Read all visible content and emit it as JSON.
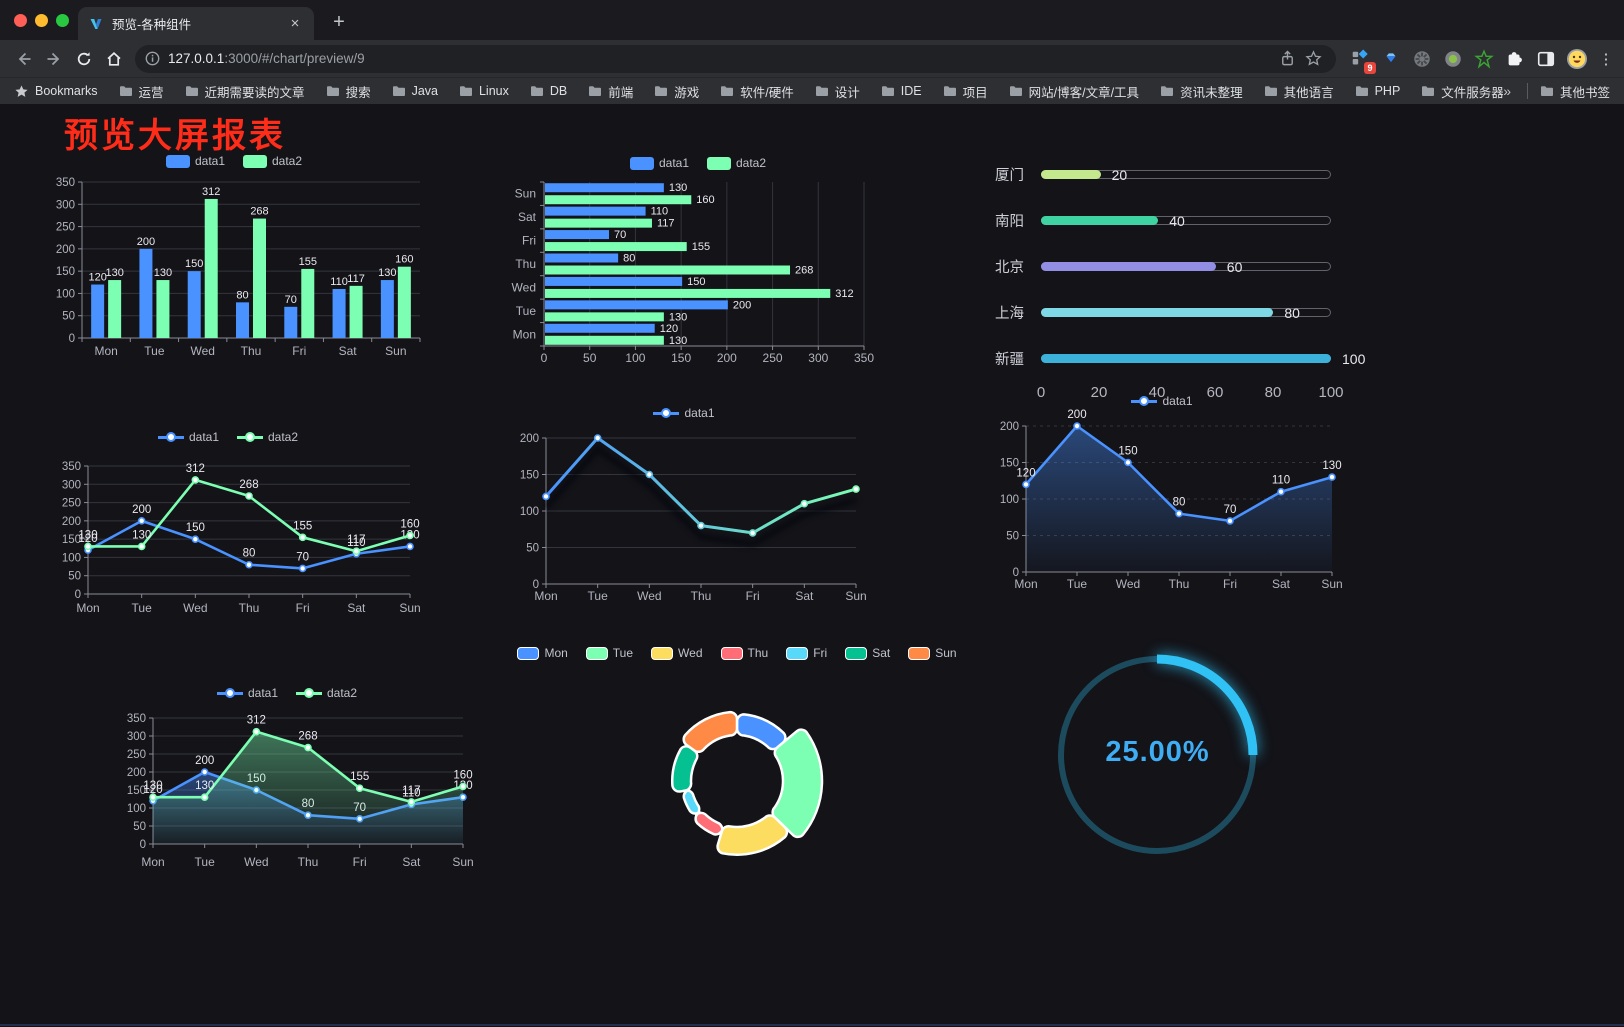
{
  "browser": {
    "tab": {
      "title": "预览-各种组件",
      "close_icon": "×",
      "new_tab_icon": "+"
    },
    "url": {
      "host": "127.0.0.1",
      "rest": ":3000/#/chart/preview/9"
    },
    "bookmarks_label": "Bookmarks",
    "bookmarks": [
      "运营",
      "近期需要读的文章",
      "搜索",
      "Java",
      "Linux",
      "DB",
      "前端",
      "游戏",
      "软件/硬件",
      "设计",
      "IDE",
      "项目",
      "网站/博客/文章/工具",
      "资讯未整理",
      "其他语言",
      "PHP",
      "文件服务器"
    ],
    "bookmarks_overflow": "»",
    "other_bookmarks": "其他书签",
    "extension_badge": "9",
    "menu_icon": "⋮"
  },
  "page": {
    "title": "预览大屏报表",
    "title_color": "#fe2c19"
  },
  "chart_data": [
    {
      "type": "bar",
      "orientation": "vertical",
      "categories": [
        "Mon",
        "Tue",
        "Wed",
        "Thu",
        "Fri",
        "Sat",
        "Sun"
      ],
      "series": [
        {
          "name": "data1",
          "color": "#4992ff",
          "values": [
            120,
            200,
            150,
            80,
            70,
            110,
            130
          ]
        },
        {
          "name": "data2",
          "color": "#7cffb2",
          "values": [
            130,
            130,
            312,
            268,
            155,
            117,
            160
          ]
        }
      ],
      "ylim": [
        0,
        350
      ],
      "ystep": 50,
      "grid": true,
      "legend_position": "top",
      "show_labels": true
    },
    {
      "type": "bar",
      "orientation": "horizontal",
      "categories": [
        "Mon",
        "Tue",
        "Wed",
        "Thu",
        "Fri",
        "Sat",
        "Sun"
      ],
      "series": [
        {
          "name": "data1",
          "color": "#4992ff",
          "values": [
            120,
            200,
            150,
            80,
            70,
            110,
            130
          ]
        },
        {
          "name": "data2",
          "color": "#7cffb2",
          "values": [
            130,
            130,
            312,
            268,
            155,
            117,
            160
          ]
        }
      ],
      "xlim": [
        0,
        350
      ],
      "xstep": 50,
      "grid": true,
      "legend_position": "top",
      "show_labels": true
    },
    {
      "type": "progress",
      "max": 100,
      "axis_ticks": [
        0,
        20,
        40,
        60,
        80,
        100
      ],
      "rows": [
        {
          "label": "厦门",
          "value": 20,
          "color": "#c3e88d"
        },
        {
          "label": "南阳",
          "value": 40,
          "color": "#3fd3a2"
        },
        {
          "label": "北京",
          "value": 60,
          "color": "#918ee3"
        },
        {
          "label": "上海",
          "value": 80,
          "color": "#7fd8e5"
        },
        {
          "label": "新疆",
          "value": 100,
          "color": "#3cb1da"
        }
      ]
    },
    {
      "type": "line",
      "categories": [
        "Mon",
        "Tue",
        "Wed",
        "Thu",
        "Fri",
        "Sat",
        "Sun"
      ],
      "series": [
        {
          "name": "data1",
          "color": "#4992ff",
          "values": [
            120,
            200,
            150,
            80,
            70,
            110,
            130
          ]
        },
        {
          "name": "data2",
          "color": "#7cffb2",
          "values": [
            130,
            130,
            312,
            268,
            155,
            117,
            160
          ]
        }
      ],
      "ylim": [
        0,
        350
      ],
      "ystep": 50,
      "show_labels": true
    },
    {
      "type": "line",
      "variant": "gradient",
      "categories": [
        "Mon",
        "Tue",
        "Wed",
        "Thu",
        "Fri",
        "Sat",
        "Sun"
      ],
      "series": [
        {
          "name": "data1",
          "color": "#4992ff",
          "color2": "#7cffb2",
          "values": [
            120,
            200,
            150,
            80,
            70,
            110,
            130
          ]
        }
      ],
      "ylim": [
        0,
        200
      ],
      "ystep": 50,
      "show_labels": false,
      "shadow": true
    },
    {
      "type": "line",
      "variant": "area",
      "categories": [
        "Mon",
        "Tue",
        "Wed",
        "Thu",
        "Fri",
        "Sat",
        "Sun"
      ],
      "series": [
        {
          "name": "data1",
          "color": "#4992ff",
          "values": [
            120,
            200,
            150,
            80,
            70,
            110,
            130
          ],
          "area": true
        }
      ],
      "ylim": [
        0,
        200
      ],
      "ystep": 50,
      "show_labels": true,
      "dashed_grid": true
    },
    {
      "type": "line",
      "variant": "area",
      "categories": [
        "Mon",
        "Tue",
        "Wed",
        "Thu",
        "Fri",
        "Sat",
        "Sun"
      ],
      "series": [
        {
          "name": "data1",
          "color": "#4992ff",
          "values": [
            120,
            200,
            150,
            80,
            70,
            110,
            130
          ],
          "area": true
        },
        {
          "name": "data2",
          "color": "#7cffb2",
          "values": [
            130,
            130,
            312,
            268,
            155,
            117,
            160
          ],
          "area": true
        }
      ],
      "ylim": [
        0,
        350
      ],
      "ystep": 50,
      "show_labels": true
    },
    {
      "type": "pie",
      "variant": "rose-donut",
      "items": [
        {
          "name": "Mon",
          "value": 120,
          "color": "#4992ff"
        },
        {
          "name": "Tue",
          "value": 200,
          "color": "#7cffb2"
        },
        {
          "name": "Wed",
          "value": 150,
          "color": "#fddd60"
        },
        {
          "name": "Thu",
          "value": 80,
          "color": "#ff6e76"
        },
        {
          "name": "Fri",
          "value": 70,
          "color": "#58d9f9"
        },
        {
          "name": "Sat",
          "value": 110,
          "color": "#05c091"
        },
        {
          "name": "Sun",
          "value": 130,
          "color": "#ff8a45"
        }
      ]
    },
    {
      "type": "gauge",
      "value": 25,
      "label": "25.00%",
      "color": "#30c2f5",
      "track_color": "#1d4b5e",
      "text_color": "#3fadf3"
    }
  ]
}
